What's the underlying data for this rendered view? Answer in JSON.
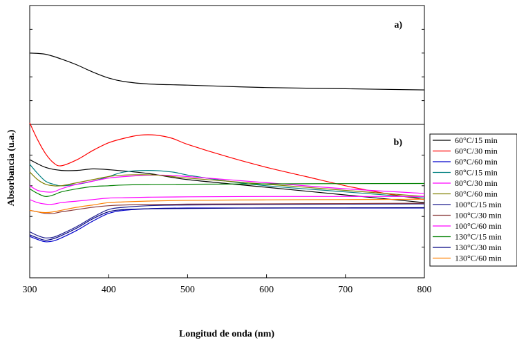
{
  "chart_data": {
    "type": "line",
    "xlabel": "Longitud de onda (nm)",
    "ylabel": "Absorbancia (u.a.)",
    "xlim": [
      300,
      800
    ],
    "x_ticks": [
      300,
      400,
      500,
      600,
      700,
      800
    ],
    "grid": false,
    "legend_position": "right",
    "panels": [
      {
        "label": "a)",
        "series": [
          {
            "color": "#000000",
            "x": [
              300,
              320,
              340,
              360,
              380,
              400,
              420,
              450,
              500,
              600,
              700,
              800
            ],
            "y": [
              0.6,
              0.59,
              0.55,
              0.5,
              0.44,
              0.39,
              0.36,
              0.34,
              0.33,
              0.31,
              0.3,
              0.29
            ]
          }
        ]
      },
      {
        "label": "b)",
        "series": [
          {
            "name": "60°C/15 min",
            "color": "#000000",
            "x": [
              300,
              320,
              340,
              360,
              380,
              400,
              450,
              500,
              600,
              700,
              800
            ],
            "y": [
              0.77,
              0.72,
              0.7,
              0.7,
              0.71,
              0.705,
              0.68,
              0.64,
              0.59,
              0.54,
              0.49
            ]
          },
          {
            "name": "60°C/30 min",
            "color": "#ff0000",
            "x": [
              300,
              310,
              320,
              330,
              340,
              360,
              380,
              400,
              420,
              440,
              460,
              480,
              500,
              550,
              600,
              650,
              700,
              750,
              800
            ],
            "y": [
              1.01,
              0.9,
              0.81,
              0.75,
              0.73,
              0.77,
              0.83,
              0.88,
              0.91,
              0.93,
              0.93,
              0.91,
              0.87,
              0.79,
              0.72,
              0.66,
              0.6,
              0.55,
              0.51
            ]
          },
          {
            "name": "60°C/60 min",
            "color": "#0000cc",
            "x": [
              300,
              310,
              320,
              330,
              340,
              360,
              380,
              400,
              420,
              450,
              500,
              600,
              700,
              800
            ],
            "y": [
              0.27,
              0.25,
              0.235,
              0.24,
              0.26,
              0.31,
              0.37,
              0.42,
              0.44,
              0.45,
              0.455,
              0.455,
              0.455,
              0.455
            ]
          },
          {
            "name": "80°C/15 min",
            "color": "#008080",
            "x": [
              300,
              310,
              320,
              330,
              340,
              360,
              380,
              400,
              420,
              450,
              480,
              500,
              550,
              600,
              700,
              800
            ],
            "y": [
              0.74,
              0.68,
              0.63,
              0.61,
              0.6,
              0.61,
              0.63,
              0.66,
              0.69,
              0.7,
              0.69,
              0.67,
              0.63,
              0.6,
              0.56,
              0.52
            ]
          },
          {
            "name": "80°C/30 min",
            "color": "#ff00ff",
            "x": [
              300,
              310,
              320,
              330,
              340,
              360,
              380,
              400,
              420,
              460,
              500,
              600,
              700,
              800
            ],
            "y": [
              0.6,
              0.57,
              0.56,
              0.56,
              0.58,
              0.61,
              0.63,
              0.65,
              0.66,
              0.67,
              0.66,
              0.62,
              0.58,
              0.55
            ]
          },
          {
            "name": "80°C/60 min",
            "color": "#808000",
            "x": [
              300,
              310,
              320,
              330,
              340,
              360,
              380,
              400,
              420,
              460,
              500,
              600,
              700,
              800
            ],
            "y": [
              0.69,
              0.64,
              0.61,
              0.6,
              0.6,
              0.62,
              0.64,
              0.66,
              0.67,
              0.67,
              0.65,
              0.61,
              0.57,
              0.53
            ]
          },
          {
            "name": "100°C/15 min",
            "color": "#1a1a8c",
            "x": [
              300,
              310,
              320,
              330,
              340,
              360,
              380,
              400,
              420,
              450,
              500,
              600,
              700,
              800
            ],
            "y": [
              0.3,
              0.275,
              0.26,
              0.265,
              0.285,
              0.335,
              0.395,
              0.445,
              0.46,
              0.47,
              0.475,
              0.478,
              0.48,
              0.482
            ]
          },
          {
            "name": "100°C/30 min",
            "color": "#8b3a3a",
            "x": [
              300,
              310,
              320,
              330,
              340,
              360,
              380,
              400,
              420,
              450,
              500,
              600,
              700,
              800
            ],
            "y": [
              0.44,
              0.43,
              0.42,
              0.42,
              0.43,
              0.445,
              0.46,
              0.47,
              0.475,
              0.478,
              0.48,
              0.482,
              0.484,
              0.486
            ]
          },
          {
            "name": "100°C/60 min",
            "color": "#ff00ff",
            "x": [
              300,
              310,
              320,
              330,
              340,
              360,
              380,
              400,
              420,
              450,
              500,
              600,
              700,
              800
            ],
            "y": [
              0.51,
              0.49,
              0.48,
              0.48,
              0.49,
              0.5,
              0.51,
              0.52,
              0.522,
              0.525,
              0.528,
              0.53,
              0.53,
              0.53
            ]
          },
          {
            "name": "130°C/15 min",
            "color": "#008000",
            "x": [
              300,
              310,
              320,
              330,
              340,
              360,
              380,
              400,
              420,
              450,
              500,
              600,
              700,
              800
            ],
            "y": [
              0.58,
              0.55,
              0.53,
              0.54,
              0.56,
              0.58,
              0.595,
              0.6,
              0.605,
              0.608,
              0.61,
              0.612,
              0.614,
              0.615
            ]
          },
          {
            "name": "130°C/30 min",
            "color": "#000080",
            "x": [
              300,
              310,
              320,
              330,
              340,
              360,
              380,
              400,
              420,
              450,
              500,
              600,
              700,
              800
            ],
            "y": [
              0.28,
              0.26,
              0.245,
              0.255,
              0.275,
              0.325,
              0.385,
              0.43,
              0.445,
              0.45,
              0.452,
              0.455,
              0.456,
              0.457
            ]
          },
          {
            "name": "130°C/60 min",
            "color": "#ff8000",
            "x": [
              300,
              310,
              320,
              330,
              340,
              360,
              380,
              400,
              420,
              450,
              500,
              600,
              700,
              800
            ],
            "y": [
              0.44,
              0.43,
              0.425,
              0.43,
              0.44,
              0.46,
              0.475,
              0.49,
              0.495,
              0.5,
              0.505,
              0.508,
              0.51,
              0.512
            ]
          }
        ]
      }
    ]
  }
}
